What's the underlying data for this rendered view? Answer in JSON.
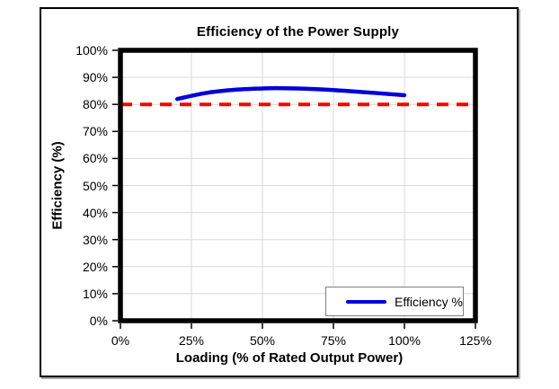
{
  "chart_data": {
    "type": "line",
    "title": "Efficiency of the Power Supply",
    "xlabel": "Loading (% of Rated Output Power)",
    "ylabel": "Efficiency (%)",
    "xlim": [
      0,
      125
    ],
    "ylim": [
      0,
      100
    ],
    "xticks": [
      "0%",
      "25%",
      "50%",
      "75%",
      "100%",
      "125%"
    ],
    "xtick_values": [
      0,
      25,
      50,
      75,
      100,
      125
    ],
    "yticks": [
      "0%",
      "10%",
      "20%",
      "30%",
      "40%",
      "50%",
      "60%",
      "70%",
      "80%",
      "90%",
      "100%"
    ],
    "ytick_values": [
      0,
      10,
      20,
      30,
      40,
      50,
      60,
      70,
      80,
      90,
      100
    ],
    "grid": true,
    "legend_position": "inside-bottom-right",
    "series": [
      {
        "name": "Efficiency %",
        "color": "#0000DD",
        "smooth": true,
        "x": [
          20,
          30,
          40,
          50,
          55,
          65,
          75,
          90,
          100
        ],
        "y": [
          82,
          84.2,
          85.4,
          85.9,
          86,
          85.8,
          85.3,
          84.2,
          83.4
        ]
      }
    ],
    "reference_line": {
      "y": 80,
      "color": "#FF0000",
      "style": "dashed"
    },
    "colors": {
      "grid": "#D9D9D9",
      "axis_border": "#000000",
      "legend_border": "#808080",
      "tick": "#000000"
    }
  }
}
